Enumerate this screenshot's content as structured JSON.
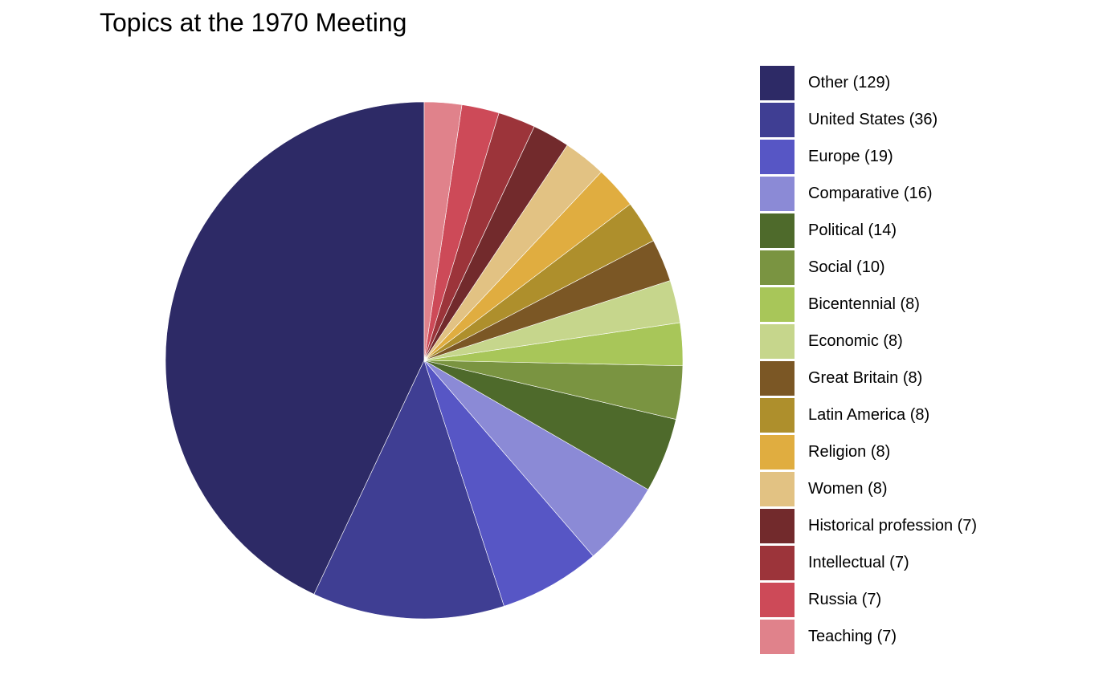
{
  "chart_data": {
    "type": "pie",
    "title": "Topics at the 1970 Meeting",
    "slices": [
      {
        "label": "Other (129)",
        "value": 129,
        "color": "#2d2a66"
      },
      {
        "label": "United States (36)",
        "value": 36,
        "color": "#3f3e93"
      },
      {
        "label": "Europe (19)",
        "value": 19,
        "color": "#5756c5"
      },
      {
        "label": "Comparative (16)",
        "value": 16,
        "color": "#8b8ad6"
      },
      {
        "label": "Political (14)",
        "value": 14,
        "color": "#4e6a2b"
      },
      {
        "label": "Social (10)",
        "value": 10,
        "color": "#7a9441"
      },
      {
        "label": "Bicentennial (8)",
        "value": 8,
        "color": "#a8c659"
      },
      {
        "label": "Economic (8)",
        "value": 8,
        "color": "#c6d68c"
      },
      {
        "label": "Great Britain (8)",
        "value": 8,
        "color": "#7b5725"
      },
      {
        "label": "Latin America (8)",
        "value": 8,
        "color": "#ae8f2c"
      },
      {
        "label": "Religion (8)",
        "value": 8,
        "color": "#e0ad40"
      },
      {
        "label": "Women (8)",
        "value": 8,
        "color": "#e2c283"
      },
      {
        "label": "Historical profession (7)",
        "value": 7,
        "color": "#722a2c"
      },
      {
        "label": "Intellectual (7)",
        "value": 7,
        "color": "#9c343a"
      },
      {
        "label": "Russia (7)",
        "value": 7,
        "color": "#cd4a58"
      },
      {
        "label": "Teaching (7)",
        "value": 7,
        "color": "#e0828b"
      }
    ],
    "start_angle": "top",
    "direction": "counterclockwise",
    "legend_position": "right"
  }
}
